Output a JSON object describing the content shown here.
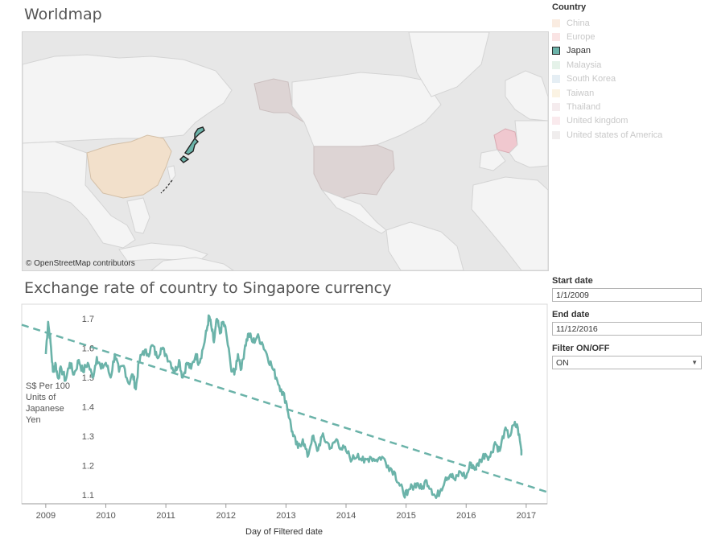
{
  "map": {
    "title": "Worldmap",
    "attribution": "© OpenStreetMap contributors",
    "colors": {
      "ocean": "#e7e7e7",
      "land": "#f4f4f4",
      "border": "#d4d4d4",
      "china": "#f2e0cb",
      "japan": "#6bb3a9",
      "usa": "#ddd4d4",
      "europe": "#f0c8cf"
    }
  },
  "legend": {
    "title": "Country",
    "items": [
      {
        "label": "China",
        "color": "#f5d4bc",
        "active": false
      },
      {
        "label": "Europe",
        "color": "#f5c4c4",
        "active": false
      },
      {
        "label": "Japan",
        "color": "#6bb3a9",
        "active": true
      },
      {
        "label": "Malaysia",
        "color": "#c5e3cf",
        "active": false
      },
      {
        "label": "South Korea",
        "color": "#c5d9e6",
        "active": false
      },
      {
        "label": "Taiwan",
        "color": "#f7e4c0",
        "active": false
      },
      {
        "label": "Thailand",
        "color": "#e8d5da",
        "active": false
      },
      {
        "label": "United kingdom",
        "color": "#f5d1d8",
        "active": false
      },
      {
        "label": "United states of America",
        "color": "#ddd6d6",
        "active": false
      }
    ]
  },
  "controls": {
    "start_label": "Start date",
    "start_value": "1/1/2009",
    "end_label": "End date",
    "end_value": "11/12/2016",
    "filter_label": "Filter ON/OFF",
    "filter_value": "ON"
  },
  "chart_data": {
    "type": "line",
    "title": "Exchange rate of country to Singapore currency",
    "xlabel": "Day of Filtered date",
    "ylabel": "S$ Per 100 Units of Japanese Yen",
    "x_ticks": [
      "2009",
      "2010",
      "2011",
      "2012",
      "2013",
      "2014",
      "2015",
      "2016",
      "2017"
    ],
    "y_ticks": [
      "1.7",
      "1.6",
      "1.5",
      "1.4",
      "1.3",
      "1.2",
      "1.1"
    ],
    "ylim": [
      1.07,
      1.75
    ],
    "xlim": [
      2008.6,
      2017.35
    ],
    "line_color": "#6bb3a9",
    "series": [
      {
        "x": [
          2009.0,
          2009.04,
          2009.08,
          2009.12,
          2009.16,
          2009.2,
          2009.26,
          2009.33,
          2009.4,
          2009.47,
          2009.55,
          2009.62,
          2009.7,
          2009.78,
          2009.85,
          2009.92,
          2010.0,
          2010.08,
          2010.15,
          2010.22,
          2010.3,
          2010.38,
          2010.45,
          2010.5,
          2010.55,
          2010.62,
          2010.7,
          2010.78,
          2010.85,
          2010.92,
          2011.0,
          2011.08,
          2011.15,
          2011.22,
          2011.28,
          2011.35,
          2011.42,
          2011.5,
          2011.55,
          2011.62,
          2011.68,
          2011.72,
          2011.76,
          2011.8,
          2011.85,
          2011.9,
          2011.95,
          2012.0,
          2012.08,
          2012.14,
          2012.2,
          2012.26,
          2012.32,
          2012.38,
          2012.45,
          2012.52,
          2012.6,
          2012.68,
          2012.76,
          2012.84,
          2012.92,
          2013.0,
          2013.06,
          2013.12,
          2013.2,
          2013.28,
          2013.36,
          2013.44,
          2013.52,
          2013.6,
          2013.68,
          2013.76,
          2013.84,
          2013.92,
          2014.0,
          2014.1,
          2014.2,
          2014.3,
          2014.4,
          2014.5,
          2014.6,
          2014.7,
          2014.8,
          2014.88,
          2014.95,
          2015.02,
          2015.1,
          2015.18,
          2015.26,
          2015.34,
          2015.42,
          2015.5,
          2015.58,
          2015.66,
          2015.74,
          2015.82,
          2015.9,
          2016.0,
          2016.08,
          2016.16,
          2016.24,
          2016.32,
          2016.4,
          2016.48,
          2016.56,
          2016.64,
          2016.72,
          2016.8,
          2016.86,
          2016.92
        ],
        "values": [
          1.58,
          1.69,
          1.62,
          1.52,
          1.55,
          1.5,
          1.53,
          1.49,
          1.55,
          1.51,
          1.56,
          1.52,
          1.55,
          1.5,
          1.57,
          1.53,
          1.55,
          1.5,
          1.58,
          1.52,
          1.54,
          1.48,
          1.51,
          1.46,
          1.55,
          1.59,
          1.58,
          1.61,
          1.57,
          1.6,
          1.58,
          1.55,
          1.52,
          1.56,
          1.5,
          1.55,
          1.53,
          1.58,
          1.55,
          1.6,
          1.66,
          1.71,
          1.67,
          1.62,
          1.7,
          1.65,
          1.69,
          1.66,
          1.54,
          1.51,
          1.58,
          1.53,
          1.61,
          1.65,
          1.62,
          1.64,
          1.62,
          1.58,
          1.54,
          1.5,
          1.46,
          1.42,
          1.36,
          1.3,
          1.26,
          1.29,
          1.23,
          1.3,
          1.25,
          1.3,
          1.28,
          1.26,
          1.29,
          1.26,
          1.25,
          1.22,
          1.24,
          1.21,
          1.23,
          1.22,
          1.23,
          1.2,
          1.18,
          1.14,
          1.11,
          1.1,
          1.13,
          1.14,
          1.12,
          1.15,
          1.12,
          1.09,
          1.12,
          1.16,
          1.17,
          1.15,
          1.18,
          1.16,
          1.21,
          1.19,
          1.22,
          1.24,
          1.23,
          1.28,
          1.25,
          1.32,
          1.3,
          1.34,
          1.33,
          1.25
        ]
      }
    ],
    "trend": {
      "x": [
        2008.6,
        2017.35
      ],
      "values": [
        1.68,
        1.11
      ]
    }
  }
}
